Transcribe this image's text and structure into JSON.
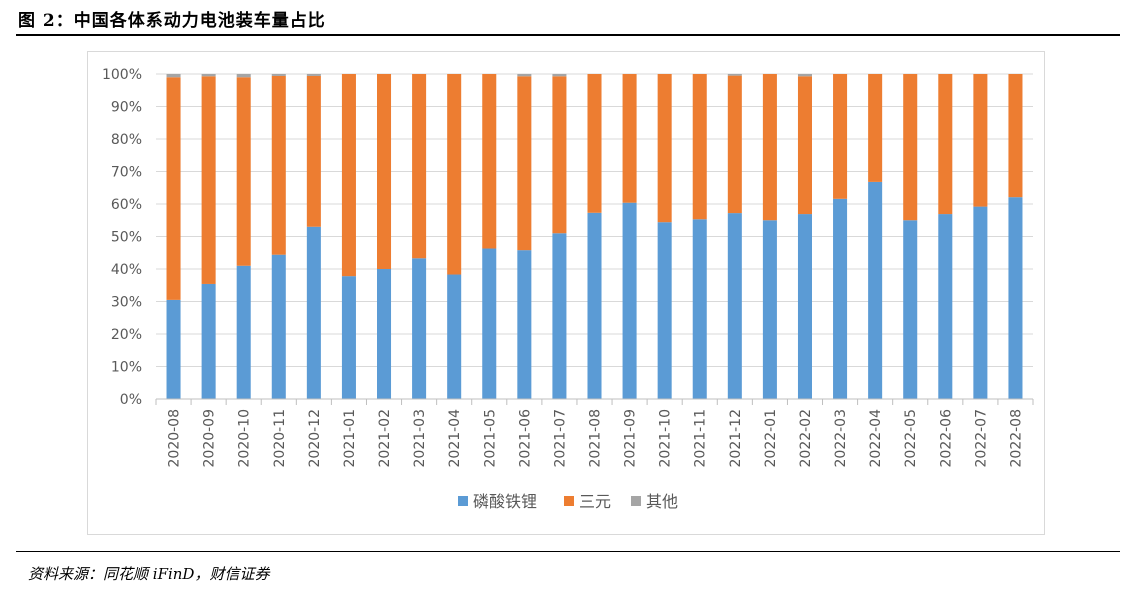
{
  "header": {
    "title": "图 2：中国各体系动力电池装车量占比"
  },
  "footer": {
    "source": "资料来源：同花顺 iFinD，财信证券"
  },
  "chart_data": {
    "type": "bar",
    "stacked": true,
    "categories": [
      "2020-08",
      "2020-09",
      "2020-10",
      "2020-11",
      "2020-12",
      "2021-01",
      "2021-02",
      "2021-03",
      "2021-04",
      "2021-05",
      "2021-06",
      "2021-07",
      "2021-08",
      "2021-09",
      "2021-10",
      "2021-11",
      "2021-12",
      "2022-01",
      "2022-02",
      "2022-03",
      "2022-04",
      "2022-05",
      "2022-06",
      "2022-07",
      "2022-08"
    ],
    "series": [
      {
        "name": "磷酸铁锂",
        "color": "#5b9bd5",
        "values": [
          30.5,
          35.4,
          41.0,
          44.4,
          53.0,
          37.8,
          40.0,
          43.3,
          38.3,
          46.3,
          45.8,
          51.0,
          57.3,
          60.4,
          54.4,
          55.3,
          57.2,
          55.0,
          56.9,
          61.6,
          66.8,
          55.0,
          56.9,
          59.2,
          62.1
        ]
      },
      {
        "name": "三元",
        "color": "#ed7d31",
        "values": [
          68.5,
          63.9,
          58.0,
          55.0,
          46.4,
          62.2,
          60.0,
          56.7,
          61.7,
          53.7,
          53.5,
          48.3,
          42.7,
          39.6,
          45.6,
          44.7,
          42.3,
          45.0,
          42.4,
          38.4,
          33.2,
          45.0,
          43.1,
          40.8,
          37.9
        ]
      },
      {
        "name": "其他",
        "color": "#a5a5a5",
        "values": [
          1.0,
          0.7,
          1.0,
          0.6,
          0.6,
          0,
          0,
          0,
          0,
          0,
          0.7,
          0.7,
          0,
          0,
          0,
          0,
          0.5,
          0,
          0.7,
          0,
          0,
          0,
          0,
          0,
          0
        ]
      }
    ],
    "ylim": [
      0,
      100
    ],
    "yticks": [
      "0%",
      "10%",
      "20%",
      "30%",
      "40%",
      "50%",
      "60%",
      "70%",
      "80%",
      "90%",
      "100%"
    ],
    "grid": true,
    "legend_position": "bottom"
  }
}
